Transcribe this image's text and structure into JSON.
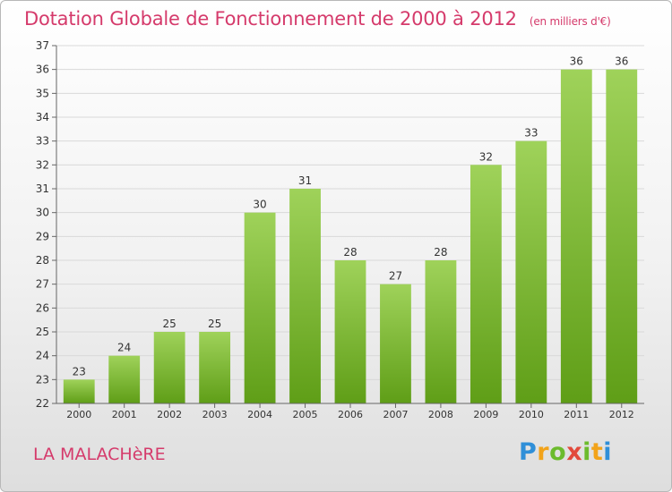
{
  "header": {
    "title": "Dotation Globale de Fonctionnement de 2000 à 2012",
    "subtitle": "(en milliers d'€)"
  },
  "footer": {
    "commune": "LA MALACHèRE",
    "logo_text": "Proxiti"
  },
  "colors": {
    "title": "#d53a6b",
    "bar_top": "#9fd25a",
    "bar_bottom": "#5f9e17",
    "grid": "#d9d9d9",
    "text": "#333333"
  },
  "chart_data": {
    "type": "bar",
    "title": "Dotation Globale de Fonctionnement de 2000 à 2012",
    "subtitle": "(en milliers d'€)",
    "categories": [
      "2000",
      "2001",
      "2002",
      "2003",
      "2004",
      "2005",
      "2006",
      "2007",
      "2008",
      "2009",
      "2010",
      "2011",
      "2012"
    ],
    "values": [
      23,
      24,
      25,
      25,
      30,
      31,
      28,
      27,
      28,
      32,
      33,
      36,
      36
    ],
    "ylim": [
      22,
      37
    ],
    "yticks": [
      22,
      23,
      24,
      25,
      26,
      27,
      28,
      29,
      30,
      31,
      32,
      33,
      34,
      35,
      36,
      37
    ],
    "grid": true,
    "xlabel": "",
    "ylabel": ""
  }
}
